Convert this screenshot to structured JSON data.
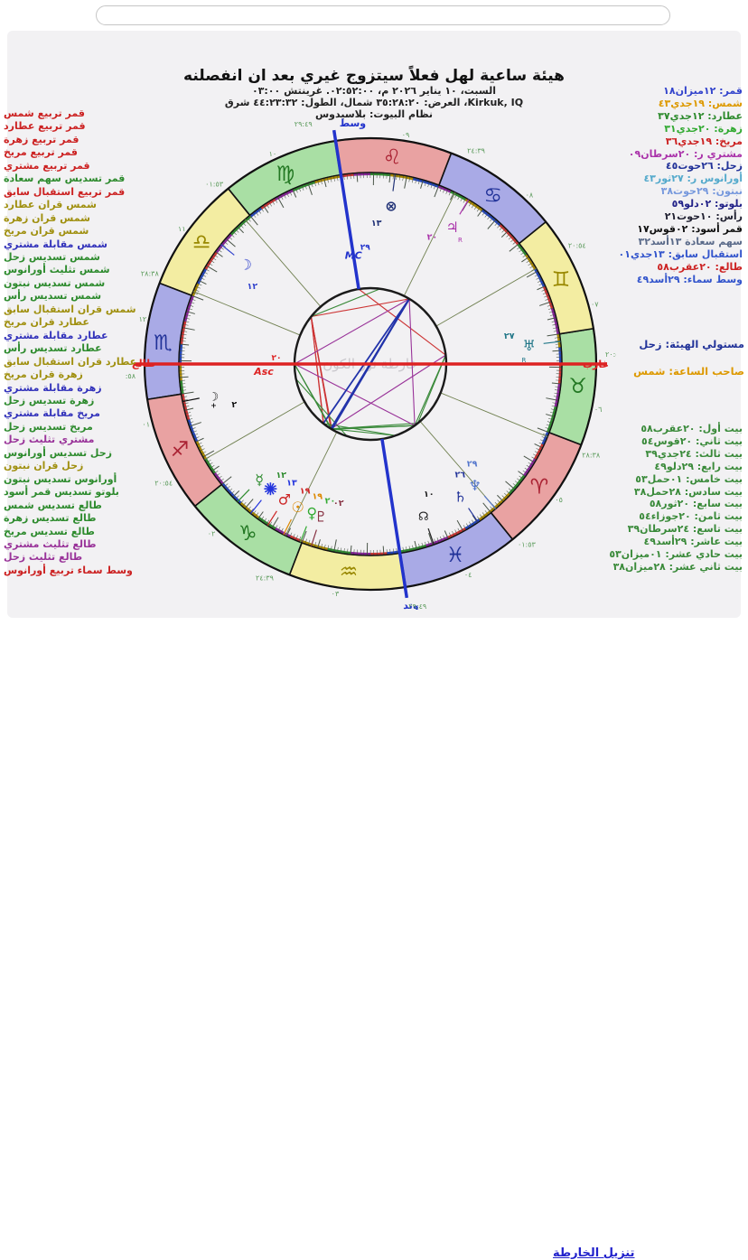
{
  "page": {
    "download_link": "تنزيل الخارطة"
  },
  "header": {
    "title": "هيئة ساعية لهل فعلاً سيتزوج غيري بعد ان انفصلنه",
    "line_datetime": "السبت، ١٠ يناير ٢٠٢٦ م، ٠٢:٥٢:٠٠. غرينتش ٠٣:٠٠",
    "line_location": "Kirkuk, IQ، العرض: ٣٥:٢٨:٢٠ شمال، الطول: ٤٤:٢٣:٣٢ شرق",
    "line_house_system": "نظام البيوت: بلاسيدوس"
  },
  "aspects_list": [
    {
      "text": "قمر تربيع شمس",
      "color": "#cc2222"
    },
    {
      "text": "قمر تربيع عطارد",
      "color": "#cc2222"
    },
    {
      "text": "قمر تربيع زهرة",
      "color": "#cc2222"
    },
    {
      "text": "قمر تربيع مريخ",
      "color": "#cc2222"
    },
    {
      "text": "قمر تربيع مشتري",
      "color": "#cc2222"
    },
    {
      "text": "قمر تسديس سهم سعادة",
      "color": "#2e8b2e"
    },
    {
      "text": "قمر تربيع استقبال سابق",
      "color": "#cc2222"
    },
    {
      "text": "شمس قران عطارد",
      "color": "#a09010"
    },
    {
      "text": "شمس قران زهرة",
      "color": "#a09010"
    },
    {
      "text": "شمس قران مريخ",
      "color": "#a09010"
    },
    {
      "text": "شمس مقابلة مشتري",
      "color": "#3333bb"
    },
    {
      "text": "شمس تسديس زحل",
      "color": "#2e8b2e"
    },
    {
      "text": "شمس تثليث أورانوس",
      "color": "#2e8b2e"
    },
    {
      "text": "شمس تسديس نبتون",
      "color": "#2e8b2e"
    },
    {
      "text": "شمس تسديس رأس",
      "color": "#2e8b2e"
    },
    {
      "text": "شمس قران استقبال سابق",
      "color": "#a09010"
    },
    {
      "text": "عطارد قران مريخ",
      "color": "#a09010"
    },
    {
      "text": "عطارد مقابلة مشتري",
      "color": "#3333bb"
    },
    {
      "text": "عطارد تسديس رأس",
      "color": "#2e8b2e"
    },
    {
      "text": "عطارد قران استقبال سابق",
      "color": "#a09010"
    },
    {
      "text": "زهرة قران مريخ",
      "color": "#a09010"
    },
    {
      "text": "زهرة مقابلة مشتري",
      "color": "#3333bb"
    },
    {
      "text": "زهرة تسديس زحل",
      "color": "#2e8b2e"
    },
    {
      "text": "مريخ مقابلة مشتري",
      "color": "#3333bb"
    },
    {
      "text": "مريخ تسديس زحل",
      "color": "#2e8b2e"
    },
    {
      "text": "مشتري تثليث زحل",
      "color": "#993399"
    },
    {
      "text": "زحل تسديس أورانوس",
      "color": "#2e8b2e"
    },
    {
      "text": "زحل قران نبتون",
      "color": "#a09010"
    },
    {
      "text": "أورانوس تسديس نبتون",
      "color": "#2e8b2e"
    },
    {
      "text": "بلوتو تسديس قمر أسود",
      "color": "#2e8b2e"
    },
    {
      "text": "طالع تسديس شمس",
      "color": "#2e8b2e"
    },
    {
      "text": "طالع تسديس زهرة",
      "color": "#2e8b2e"
    },
    {
      "text": "طالع تسديس مريخ",
      "color": "#2e8b2e"
    },
    {
      "text": "طالع تثليث مشتري",
      "color": "#993399"
    },
    {
      "text": "طالع تثليث زحل",
      "color": "#993399"
    },
    {
      "text": "وسط سماء تربيع أورانوس",
      "color": "#cc2222"
    }
  ],
  "positions_list": [
    {
      "text": "قمر: ١٢ميزان١٨",
      "color": "#3344cc"
    },
    {
      "text": "شمس: ١٩جدي٤٣",
      "color": "#dd9900"
    },
    {
      "text": "عطارد: ١٢جدي٣٧",
      "color": "#2e8b2e"
    },
    {
      "text": "زهرة: ٢٠جدي٣١",
      "color": "#33aa33"
    },
    {
      "text": "مريخ: ١٩جدي٣٦",
      "color": "#cc2222"
    },
    {
      "text": "مشتري ر: ٢٠سرطان٠٩",
      "color": "#aa33aa"
    },
    {
      "text": "زحل: ٢٦حوت٤٥",
      "color": "#223399"
    },
    {
      "text": "أورانوس ر: ٢٧ثور٤٣",
      "color": "#55aacc"
    },
    {
      "text": "نبتون: ٢٩حوت٣٨",
      "color": "#7799dd"
    },
    {
      "text": "بلوتو: ٠٢دلو٥٩",
      "color": "#222288"
    },
    {
      "text": "رأس: ١٠حوت٢١",
      "color": "#222233"
    },
    {
      "text": "قمر أسود: ٠٢قوس١٧",
      "color": "#111111"
    },
    {
      "text": "سهم سعادة ١٣أسد٣٢",
      "color": "#5b6b8a"
    },
    {
      "text": "استقبال سابق: ١٣جدي٠١",
      "color": "#3355cc"
    },
    {
      "text": "طالع: ٢٠عقرب٥٨",
      "color": "#cc2222"
    },
    {
      "text": "وسط سماء: ٢٩أسد٤٩",
      "color": "#3355cc"
    }
  ],
  "rulers": {
    "figure_ruler": "مستولي الهيئة: زحل",
    "hour_ruler": "صاحب الساعة: شمس"
  },
  "houses_list": [
    {
      "text": "بيت أول: ٢٠عقرب٥٨"
    },
    {
      "text": "بيت ثاني: ٢٠قوس٥٤"
    },
    {
      "text": "بيت ثالث: ٢٤جدي٣٩"
    },
    {
      "text": "بيت رابع: ٢٩دلو٤٩"
    },
    {
      "text": "بيت خامس: ٠١حمل٥٣"
    },
    {
      "text": "بيت سادس: ٢٨حمل٣٨"
    },
    {
      "text": "بيت سابع: ٢٠ثور٥٨"
    },
    {
      "text": "بيت ثامن: ٢٠جوزاء٥٤"
    },
    {
      "text": "بيت تاسع: ٢٤سرطان٣٩"
    },
    {
      "text": "بيت عاشر: ٢٩أسد٤٩"
    },
    {
      "text": "بيت حادي عشر: ٠١ميزان٥٣"
    },
    {
      "text": "بيت ثاني عشر: ٢٨ميزان٣٨"
    }
  ],
  "chart_data": {
    "type": "astrology-wheel",
    "asc_lon": 230.97,
    "mc_lon": 149.82,
    "watermark": "خارطة نور الكون",
    "element_colors": {
      "fire": "#e9a2a2",
      "earth": "#a9dfa4",
      "air": "#f3eda2",
      "water": "#a9aae6"
    },
    "glyph_colors": {
      "fire": "#aa2233",
      "earth": "#227722",
      "air": "#998800",
      "water": "#223399"
    },
    "term_colors": [
      "#aa8800",
      "#2e8b2e",
      "#882299",
      "#cc3333",
      "#2244bb"
    ],
    "signs": [
      {
        "name": "aries",
        "glyph": "♈",
        "element": "fire"
      },
      {
        "name": "taurus",
        "glyph": "♉",
        "element": "earth"
      },
      {
        "name": "gemini",
        "glyph": "♊",
        "element": "air"
      },
      {
        "name": "cancer",
        "glyph": "♋",
        "element": "water"
      },
      {
        "name": "leo",
        "glyph": "♌",
        "element": "fire"
      },
      {
        "name": "virgo",
        "glyph": "♍",
        "element": "earth"
      },
      {
        "name": "libra",
        "glyph": "♎",
        "element": "air"
      },
      {
        "name": "scorpio",
        "glyph": "♏",
        "element": "water"
      },
      {
        "name": "sagittarius",
        "glyph": "♐",
        "element": "fire"
      },
      {
        "name": "capricorn",
        "glyph": "♑",
        "element": "earth"
      },
      {
        "name": "aquarius",
        "glyph": "♒",
        "element": "air"
      },
      {
        "name": "pisces",
        "glyph": "♓",
        "element": "water"
      }
    ],
    "houses": [
      {
        "num": "٠١",
        "lon": 230.97,
        "label": "٢٠:٥٨"
      },
      {
        "num": "٠٢",
        "lon": 260.9,
        "label": "٢٠:٥٤"
      },
      {
        "num": "٠٣",
        "lon": 294.65,
        "label": "٢٤:٣٩"
      },
      {
        "num": "٠٤",
        "lon": 329.82,
        "label": "٢٩:٤٩"
      },
      {
        "num": "٠٥",
        "lon": 1.88,
        "label": "٠١:٥٣"
      },
      {
        "num": "٠٦",
        "lon": 28.63,
        "label": "٢٨:٣٨"
      },
      {
        "num": "٠٧",
        "lon": 50.97,
        "label": "٢٠:٥٨"
      },
      {
        "num": "٠٨",
        "lon": 80.9,
        "label": "٢٠:٥٤"
      },
      {
        "num": "٠٩",
        "lon": 114.65,
        "label": "٢٤:٣٩"
      },
      {
        "num": "١٠",
        "lon": 149.82,
        "label": "٢٩:٤٩"
      },
      {
        "num": "١١",
        "lon": 181.88,
        "label": "٠١:٥٣"
      },
      {
        "num": "١٢",
        "lon": 208.63,
        "label": "٢٨:٣٨"
      }
    ],
    "planets": [
      {
        "key": "moon",
        "glyph": "☽",
        "num": "١٢",
        "color": "#3344cc",
        "lon": 192.3
      },
      {
        "key": "sun",
        "glyph": "☉",
        "num": "١٩",
        "color": "#dd8800",
        "lon": 289.72,
        "dlon": 294
      },
      {
        "key": "mercury",
        "glyph": "☿",
        "num": "١٢",
        "color": "#2e8b2e",
        "lon": 282.62,
        "dlon": 277
      },
      {
        "key": "venus",
        "glyph": "♀",
        "num": "٢٠",
        "color": "#33aa33",
        "lon": 290.52,
        "dlon": 299.5
      },
      {
        "key": "mars",
        "glyph": "♂",
        "num": "١٩",
        "color": "#cc2222",
        "lon": 289.6,
        "dlon": 288.5
      },
      {
        "key": "jupiter",
        "glyph": "♃",
        "num": "٢٠",
        "color": "#aa33aa",
        "lon": 110.15,
        "retro": true
      },
      {
        "key": "saturn",
        "glyph": "♄",
        "num": "٢٦",
        "color": "#223399",
        "lon": 356.75,
        "dlon": 355.2
      },
      {
        "key": "uranus",
        "glyph": "♅",
        "num": "٢٧",
        "color": "#227788",
        "lon": 57.72,
        "retro": true
      },
      {
        "key": "neptune",
        "glyph": "♆",
        "num": "٢٩",
        "color": "#5577cc",
        "lon": 359.63,
        "dlon": 361.8
      },
      {
        "key": "pluto",
        "glyph": "♇",
        "num": "٠٢",
        "color": "#883344",
        "lon": 302.98
      },
      {
        "key": "node",
        "glyph": "☊",
        "num": "١٠",
        "color": "#222222",
        "lon": 340.35
      },
      {
        "key": "lilith",
        "glyph": "☽",
        "sub": "+",
        "num": "٢",
        "color": "#111111",
        "lon": 242.28
      },
      {
        "key": "pof",
        "glyph": "⊗",
        "num": "١٣",
        "color": "#223377",
        "lon": 133.53
      },
      {
        "key": "istiqbal",
        "star": true,
        "num": "١٣",
        "color": "#2233dd",
        "lon": 283.02,
        "dlon": 282.3
      }
    ],
    "aspect_colors": {
      "square": "#cc3333",
      "opposition": "#2233aa",
      "sextile": "#3a8a3a",
      "trine": "#993399"
    },
    "aspects": [
      {
        "a": "moon",
        "b": "sun",
        "type": "square"
      },
      {
        "a": "moon",
        "b": "mercury",
        "type": "square"
      },
      {
        "a": "moon",
        "b": "venus",
        "type": "square"
      },
      {
        "a": "moon",
        "b": "mars",
        "type": "square"
      },
      {
        "a": "moon",
        "b": "jupiter",
        "type": "square"
      },
      {
        "a": "moon",
        "b": "istiqbal",
        "type": "square"
      },
      {
        "a": "mc",
        "b": "uranus",
        "type": "square"
      },
      {
        "a": "moon",
        "b": "pof",
        "type": "sextile"
      },
      {
        "a": "sun",
        "b": "saturn",
        "type": "sextile"
      },
      {
        "a": "sun",
        "b": "neptune",
        "type": "sextile"
      },
      {
        "a": "sun",
        "b": "node",
        "type": "sextile"
      },
      {
        "a": "mercury",
        "b": "node",
        "type": "sextile"
      },
      {
        "a": "venus",
        "b": "saturn",
        "type": "sextile"
      },
      {
        "a": "mars",
        "b": "saturn",
        "type": "sextile"
      },
      {
        "a": "saturn",
        "b": "uranus",
        "type": "sextile"
      },
      {
        "a": "uranus",
        "b": "neptune",
        "type": "sextile"
      },
      {
        "a": "pluto",
        "b": "lilith",
        "type": "sextile"
      },
      {
        "a": "asc",
        "b": "sun",
        "type": "sextile"
      },
      {
        "a": "asc",
        "b": "venus",
        "type": "sextile"
      },
      {
        "a": "asc",
        "b": "mars",
        "type": "sextile"
      },
      {
        "a": "sun",
        "b": "uranus",
        "type": "trine"
      },
      {
        "a": "jupiter",
        "b": "saturn",
        "type": "trine"
      },
      {
        "a": "asc",
        "b": "jupiter",
        "type": "trine"
      },
      {
        "a": "asc",
        "b": "saturn",
        "type": "trine"
      },
      {
        "a": "sun",
        "b": "jupiter",
        "type": "opposition"
      },
      {
        "a": "mercury",
        "b": "jupiter",
        "type": "opposition"
      },
      {
        "a": "venus",
        "b": "jupiter",
        "type": "opposition"
      },
      {
        "a": "mars",
        "b": "jupiter",
        "type": "opposition"
      }
    ],
    "axis_labels": {
      "asc": "طالع",
      "dsc": "غارب",
      "mc_top": "وسط",
      "ic": "وتد",
      "asc_inner": "Asc",
      "mc_inner": "MC",
      "asc_deg": "٢٠",
      "mc_deg": "٢٩",
      "asc_cusp": "٢٠:٥٨",
      "mc_cusp": "٢٩:٤٩"
    }
  }
}
